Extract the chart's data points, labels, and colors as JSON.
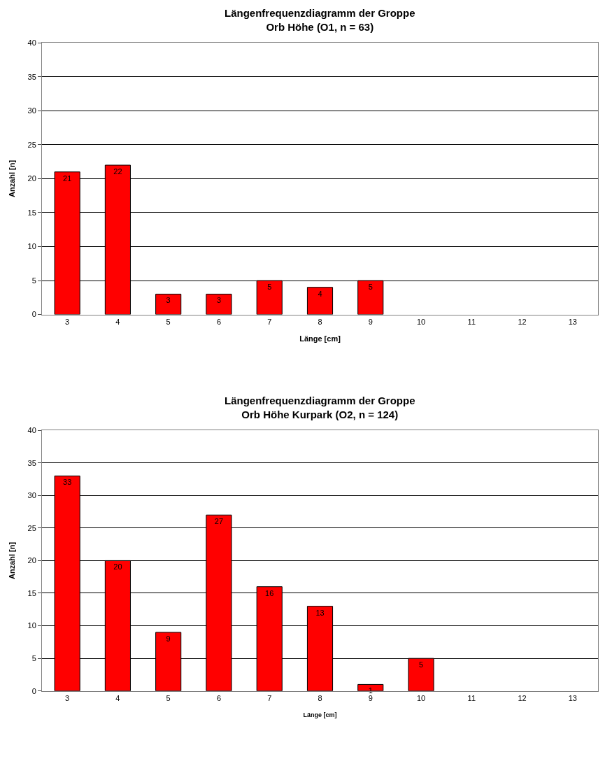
{
  "chart_data": [
    {
      "type": "bar",
      "title": "Längenfrequenzdiagramm der Groppe\nOrb Höhe (O1, n = 63)",
      "xlabel": "Länge [cm]",
      "ylabel": "Anzahl [n]",
      "categories": [
        "3",
        "4",
        "5",
        "6",
        "7",
        "8",
        "9",
        "10",
        "11",
        "12",
        "13"
      ],
      "values": [
        21,
        22,
        3,
        3,
        5,
        4,
        5,
        0,
        0,
        0,
        0
      ],
      "value_labels": [
        "21",
        "22",
        "3",
        "3",
        "5",
        "4",
        "5",
        null,
        null,
        null,
        null
      ],
      "color": "#ff0000",
      "ylim": [
        0,
        40
      ],
      "yticks": [
        0,
        5,
        10,
        15,
        20,
        25,
        30,
        35,
        40
      ],
      "grid": "y"
    },
    {
      "type": "bar",
      "title": "Längenfrequenzdiagramm der Groppe\nOrb Höhe Kurpark (O2, n = 124)",
      "xlabel": "Länge [cm]",
      "ylabel": "Anzahl [n]",
      "categories": [
        "3",
        "4",
        "5",
        "6",
        "7",
        "8",
        "9",
        "10",
        "11",
        "12",
        "13"
      ],
      "values": [
        33,
        20,
        9,
        27,
        16,
        13,
        1,
        5,
        0,
        0,
        0
      ],
      "value_labels": [
        "33",
        "20",
        "9",
        "27",
        "16",
        "13",
        "1",
        "5",
        null,
        null,
        null
      ],
      "color": "#ff0000",
      "ylim": [
        0,
        40
      ],
      "yticks": [
        0,
        5,
        10,
        15,
        20,
        25,
        30,
        35,
        40
      ],
      "grid": "y"
    }
  ]
}
